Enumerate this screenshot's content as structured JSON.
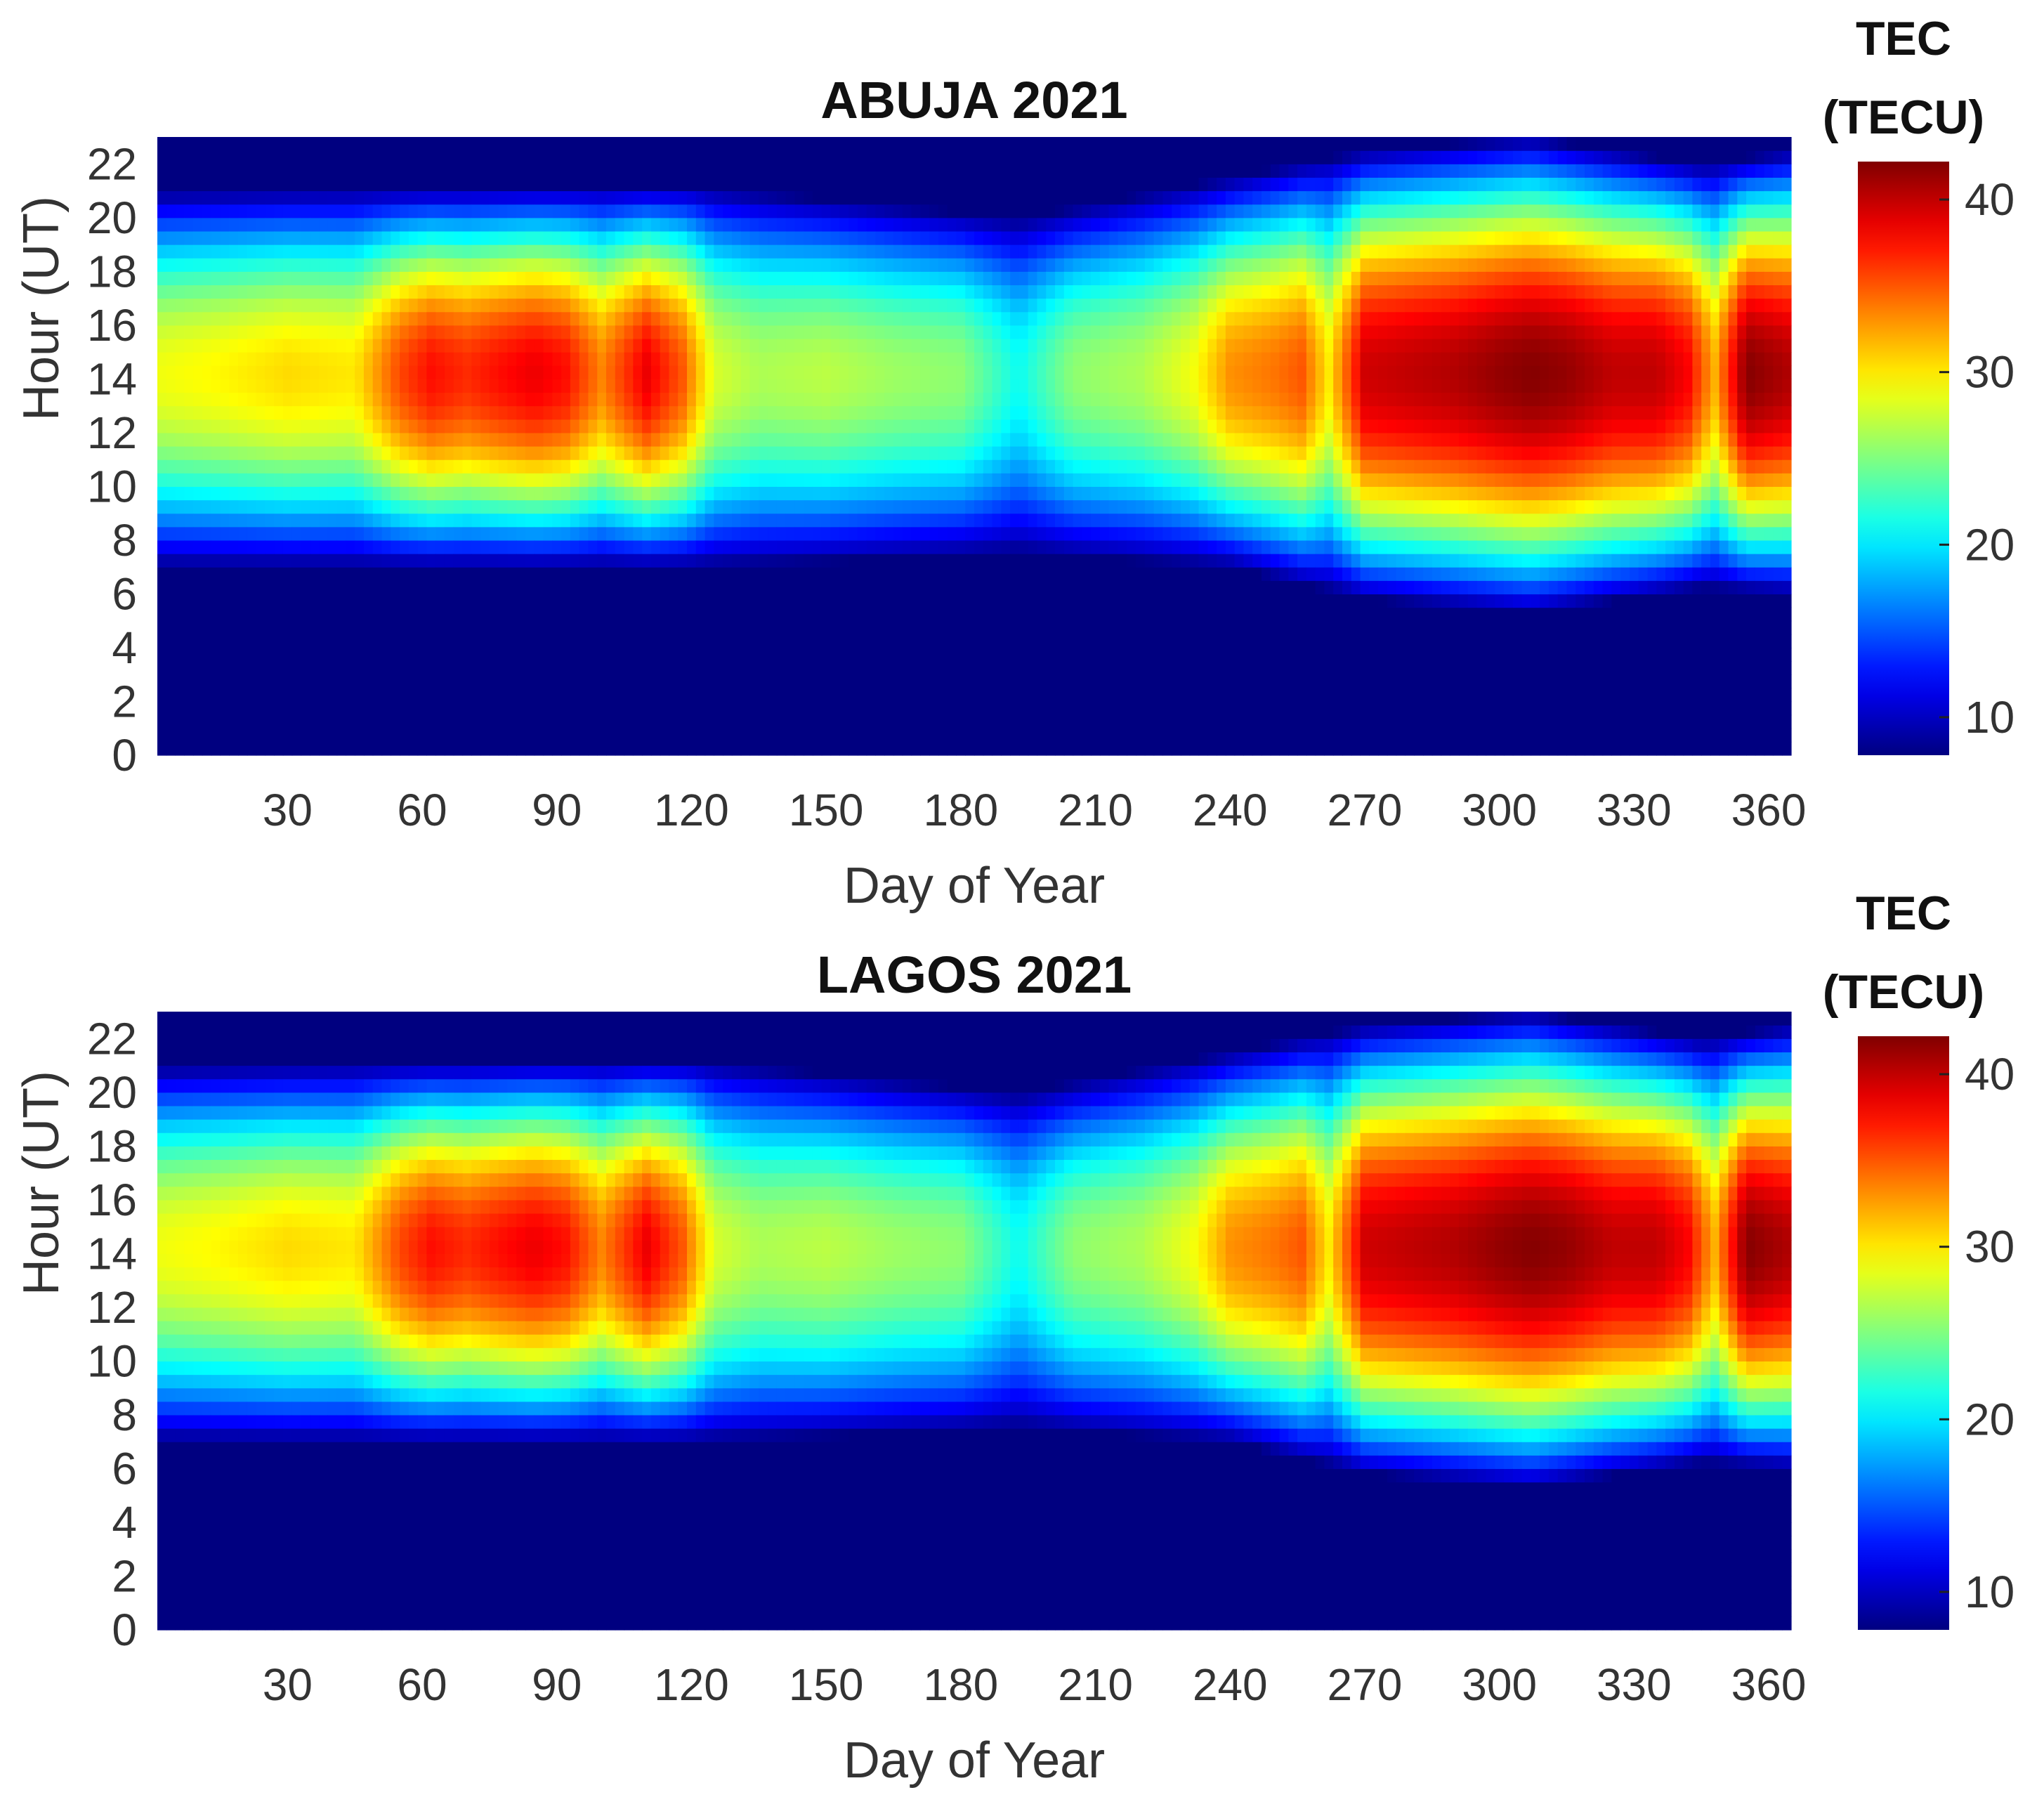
{
  "chart_data": [
    {
      "type": "heatmap",
      "title": "ABUJA 2021",
      "xlabel": "Day of Year",
      "ylabel": "Hour (UT)",
      "xlim": [
        1,
        365
      ],
      "ylim": [
        0,
        23
      ],
      "xticks": [
        "30",
        "60",
        "90",
        "120",
        "150",
        "180",
        "210",
        "240",
        "270",
        "300",
        "330",
        "360"
      ],
      "yticks": [
        "0",
        "2",
        "4",
        "6",
        "8",
        "10",
        "12",
        "14",
        "16",
        "18",
        "20",
        "22"
      ],
      "colorbar": {
        "title_line1": "TEC",
        "title_line2": "(TECU)",
        "ticks": [
          "10",
          "20",
          "30",
          "40"
        ],
        "range": [
          7.8,
          42.2
        ],
        "colormap": "jet"
      },
      "peak_tec_by_day": [
        {
          "day": 1,
          "peak": 28.8
        },
        {
          "day": 15,
          "peak": 29.5
        },
        {
          "day": 30,
          "peak": 30.5
        },
        {
          "day": 45,
          "peak": 30.0
        },
        {
          "day": 55,
          "peak": 35.5
        },
        {
          "day": 62,
          "peak": 37.5
        },
        {
          "day": 70,
          "peak": 36.5
        },
        {
          "day": 77,
          "peak": 37.5
        },
        {
          "day": 85,
          "peak": 38.5
        },
        {
          "day": 92,
          "peak": 37.5
        },
        {
          "day": 100,
          "peak": 33.5
        },
        {
          "day": 110,
          "peak": 38.5
        },
        {
          "day": 118,
          "peak": 35.0
        },
        {
          "day": 125,
          "peak": 28.0
        },
        {
          "day": 135,
          "peak": 26.5
        },
        {
          "day": 150,
          "peak": 27.0
        },
        {
          "day": 165,
          "peak": 26.0
        },
        {
          "day": 180,
          "peak": 25.5
        },
        {
          "day": 193,
          "peak": 21.0
        },
        {
          "day": 205,
          "peak": 25.5
        },
        {
          "day": 220,
          "peak": 26.5
        },
        {
          "day": 232,
          "peak": 29.0
        },
        {
          "day": 240,
          "peak": 33.0
        },
        {
          "day": 250,
          "peak": 34.0
        },
        {
          "day": 256,
          "peak": 35.0
        },
        {
          "day": 262,
          "peak": 30.0
        },
        {
          "day": 270,
          "peak": 39.5
        },
        {
          "day": 280,
          "peak": 40.0
        },
        {
          "day": 290,
          "peak": 40.5
        },
        {
          "day": 300,
          "peak": 41.5
        },
        {
          "day": 307,
          "peak": 42.0
        },
        {
          "day": 315,
          "peak": 41.5
        },
        {
          "day": 325,
          "peak": 40.0
        },
        {
          "day": 335,
          "peak": 40.0
        },
        {
          "day": 342,
          "peak": 38.0
        },
        {
          "day": 348,
          "peak": 32.0
        },
        {
          "day": 355,
          "peak": 42.0
        },
        {
          "day": 365,
          "peak": 40.5
        }
      ],
      "diurnal_window_by_day": [
        {
          "day": 1,
          "rise": 7.0,
          "set": 21.0
        },
        {
          "day": 120,
          "rise": 7.0,
          "set": 21.2
        },
        {
          "day": 193,
          "rise": 7.5,
          "set": 20.0
        },
        {
          "day": 240,
          "rise": 7.0,
          "set": 21.5
        },
        {
          "day": 270,
          "rise": 5.8,
          "set": 22.5
        },
        {
          "day": 307,
          "rise": 5.3,
          "set": 23.0
        },
        {
          "day": 345,
          "rise": 6.2,
          "set": 22.0
        },
        {
          "day": 365,
          "rise": 6.0,
          "set": 22.5
        }
      ],
      "peak_hour_ut": 14.2
    },
    {
      "type": "heatmap",
      "title": "LAGOS 2021",
      "xlabel": "Day of Year",
      "ylabel": "Hour (UT)",
      "xlim": [
        1,
        365
      ],
      "ylim": [
        0,
        23
      ],
      "xticks": [
        "30",
        "60",
        "90",
        "120",
        "150",
        "180",
        "210",
        "240",
        "270",
        "300",
        "330",
        "360"
      ],
      "yticks": [
        "0",
        "2",
        "4",
        "6",
        "8",
        "10",
        "12",
        "14",
        "16",
        "18",
        "20",
        "22"
      ],
      "colorbar": {
        "title_line1": "TEC",
        "title_line2": "(TECU)",
        "ticks": [
          "10",
          "20",
          "30",
          "40"
        ],
        "range": [
          7.8,
          42.2
        ],
        "colormap": "jet"
      },
      "peak_tec_by_day": [
        {
          "day": 1,
          "peak": 28.8
        },
        {
          "day": 15,
          "peak": 29.5
        },
        {
          "day": 30,
          "peak": 30.5
        },
        {
          "day": 45,
          "peak": 30.0
        },
        {
          "day": 55,
          "peak": 35.5
        },
        {
          "day": 62,
          "peak": 37.5
        },
        {
          "day": 70,
          "peak": 36.5
        },
        {
          "day": 77,
          "peak": 37.5
        },
        {
          "day": 85,
          "peak": 38.5
        },
        {
          "day": 92,
          "peak": 37.5
        },
        {
          "day": 100,
          "peak": 33.5
        },
        {
          "day": 110,
          "peak": 38.5
        },
        {
          "day": 118,
          "peak": 35.0
        },
        {
          "day": 125,
          "peak": 28.0
        },
        {
          "day": 135,
          "peak": 26.5
        },
        {
          "day": 150,
          "peak": 27.0
        },
        {
          "day": 165,
          "peak": 26.0
        },
        {
          "day": 180,
          "peak": 25.5
        },
        {
          "day": 193,
          "peak": 21.0
        },
        {
          "day": 205,
          "peak": 25.5
        },
        {
          "day": 220,
          "peak": 26.5
        },
        {
          "day": 232,
          "peak": 29.0
        },
        {
          "day": 240,
          "peak": 33.0
        },
        {
          "day": 250,
          "peak": 34.0
        },
        {
          "day": 256,
          "peak": 35.0
        },
        {
          "day": 262,
          "peak": 30.0
        },
        {
          "day": 270,
          "peak": 39.5
        },
        {
          "day": 280,
          "peak": 40.0
        },
        {
          "day": 290,
          "peak": 40.5
        },
        {
          "day": 300,
          "peak": 41.5
        },
        {
          "day": 307,
          "peak": 42.0
        },
        {
          "day": 315,
          "peak": 41.5
        },
        {
          "day": 325,
          "peak": 40.0
        },
        {
          "day": 335,
          "peak": 40.0
        },
        {
          "day": 342,
          "peak": 38.0
        },
        {
          "day": 348,
          "peak": 32.0
        },
        {
          "day": 355,
          "peak": 42.0
        },
        {
          "day": 365,
          "peak": 40.5
        }
      ],
      "diurnal_window_by_day": [
        {
          "day": 1,
          "rise": 7.0,
          "set": 21.0
        },
        {
          "day": 120,
          "rise": 7.0,
          "set": 21.2
        },
        {
          "day": 193,
          "rise": 7.5,
          "set": 20.0
        },
        {
          "day": 240,
          "rise": 7.0,
          "set": 21.5
        },
        {
          "day": 270,
          "rise": 5.8,
          "set": 22.5
        },
        {
          "day": 307,
          "rise": 5.3,
          "set": 23.0
        },
        {
          "day": 345,
          "rise": 6.2,
          "set": 22.0
        },
        {
          "day": 365,
          "rise": 6.0,
          "set": 22.5
        }
      ],
      "peak_hour_ut": 14.2
    }
  ]
}
